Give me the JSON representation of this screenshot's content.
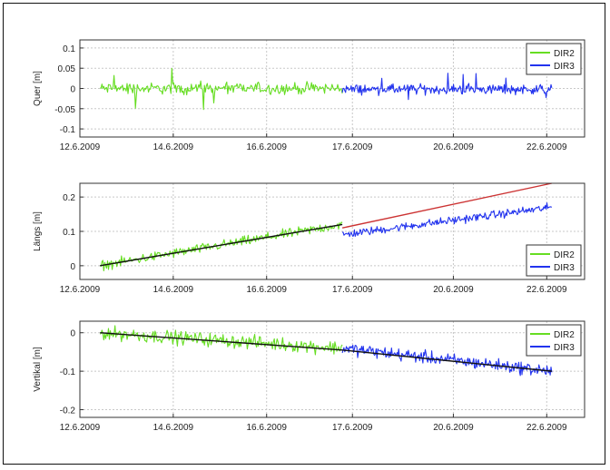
{
  "colors": {
    "dir2": "#66dd22",
    "dir3": "#2233ee",
    "trend_black": "#111111",
    "trend_red": "#cc3333",
    "grid": "#c8c8c8",
    "axis": "#333333"
  },
  "chart_data": [
    {
      "type": "line",
      "ylabel": "Quer [m]",
      "ylim": [
        -0.12,
        0.12
      ],
      "yticks": [
        -0.1,
        -0.05,
        0,
        0.05,
        0.1
      ],
      "ytick_labels": [
        "-0.1",
        "-0.05",
        "0",
        "0.05",
        "0.1"
      ],
      "xticks": [
        "12.6.2009",
        "14.6.2009",
        "16.6.2009",
        "17.6.2009",
        "20.6.2009",
        "22.6.2009"
      ],
      "legend": [
        "DIR2",
        "DIR3"
      ],
      "legend_position": "top-right",
      "grid": true,
      "series": [
        {
          "name": "DIR2",
          "x_range": [
            "12.6.2009",
            "17.6.2009"
          ],
          "mean": 0,
          "noise": 0.012,
          "spikes": [
            0.05,
            -0.07,
            -0.08
          ]
        },
        {
          "name": "DIR3",
          "x_range": [
            "17.6.2009",
            "22.6.2009"
          ],
          "mean": -0.002,
          "noise": 0.01,
          "spikes": [
            -0.03,
            0.04
          ]
        }
      ]
    },
    {
      "type": "line",
      "ylabel": "Längs [m]",
      "ylim": [
        -0.04,
        0.24
      ],
      "yticks": [
        0,
        0.1,
        0.2
      ],
      "ytick_labels": [
        "0",
        "0.1",
        "0.2"
      ],
      "xticks": [
        "12.6.2009",
        "14.6.2009",
        "16.6.2009",
        "17.6.2009",
        "20.6.2009",
        "22.6.2009"
      ],
      "legend": [
        "DIR2",
        "DIR3"
      ],
      "legend_position": "bottom-right",
      "grid": true,
      "series": [
        {
          "name": "DIR2",
          "x_range": [
            "12.6.2009",
            "17.6.2009"
          ],
          "start": 0.0,
          "end": 0.12,
          "noise": 0.012
        },
        {
          "name": "DIR3",
          "x_range": [
            "17.6.2009",
            "22.6.2009"
          ],
          "start": 0.09,
          "end": 0.17,
          "noise": 0.01
        }
      ],
      "trend_lines": [
        {
          "color": "black",
          "from": [
            "12.6.2009",
            0.0
          ],
          "to": [
            "17.6.2009",
            0.12
          ]
        },
        {
          "color": "red",
          "from": [
            "17.6.2009",
            0.11
          ],
          "to": [
            "22.6.2009",
            0.24
          ]
        }
      ]
    },
    {
      "type": "line",
      "ylabel": "Vertikal [m]",
      "ylim": [
        -0.22,
        0.03
      ],
      "yticks": [
        -0.2,
        -0.1,
        0
      ],
      "ytick_labels": [
        "-0.2",
        "-0.1",
        "0"
      ],
      "xticks": [
        "12.6.2009",
        "14.6.2009",
        "16.6.2009",
        "17.6.2009",
        "20.6.2009",
        "22.6.2009"
      ],
      "legend": [
        "DIR2",
        "DIR3"
      ],
      "legend_position": "top-right",
      "grid": true,
      "series": [
        {
          "name": "DIR2",
          "x_range": [
            "12.6.2009",
            "17.6.2009"
          ],
          "start": 0.0,
          "end": -0.04,
          "noise": 0.015
        },
        {
          "name": "DIR3",
          "x_range": [
            "17.6.2009",
            "22.6.2009"
          ],
          "start": -0.04,
          "end": -0.1,
          "noise": 0.014
        }
      ],
      "trend_lines": [
        {
          "color": "black",
          "from": [
            "12.6.2009",
            0.0
          ],
          "to": [
            "17.6.2009",
            -0.045
          ]
        },
        {
          "color": "black",
          "from": [
            "17.6.2009",
            -0.045
          ],
          "to": [
            "22.6.2009",
            -0.1
          ]
        }
      ]
    }
  ]
}
